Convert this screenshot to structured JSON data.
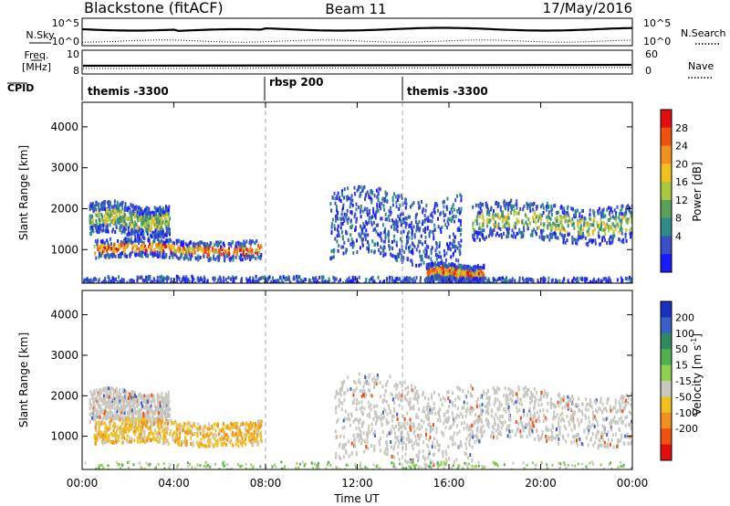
{
  "header": {
    "station": "Blackstone (fitACF)",
    "beam": "Beam 11",
    "date": "17/May/2016"
  },
  "top_panels": {
    "nsky_label": "N.Sky",
    "nsearch_label": "N.Search",
    "nsky_scale_top": "10^5",
    "nsky_scale_bottom": "10^0",
    "freq_label": "Freq.",
    "freq_unit": "[MHz]",
    "freq_ticks": [
      "10",
      "8"
    ],
    "nave_label": "Nave",
    "nave_ticks": [
      "60",
      "0"
    ],
    "cpid_label": "CPID",
    "cpid_segments": [
      {
        "label": "themis -3300",
        "start_hour": 0
      },
      {
        "label": "rbsp 200",
        "start_hour": 8
      },
      {
        "label": "themis -3300",
        "start_hour": 14
      }
    ]
  },
  "axes": {
    "xlabel": "Time UT",
    "x_tick_labels": [
      "00:00",
      "04:00",
      "08:00",
      "12:00",
      "16:00",
      "20:00",
      "00:00"
    ],
    "ylabel": "Slant Range [km]",
    "y_tick_labels": [
      "1000",
      "2000",
      "3000",
      "4000"
    ]
  },
  "power_colorbar": {
    "label": "Power [dB]",
    "tick_labels": [
      "4",
      "8",
      "12",
      "16",
      "20",
      "24",
      "28"
    ],
    "colors": [
      "#1a1aff",
      "#3a50c8",
      "#2f8a8a",
      "#5aa05a",
      "#a8c840",
      "#f0c020",
      "#f09020",
      "#f05010",
      "#e01010"
    ]
  },
  "velocity_colorbar": {
    "label": "Velocity [m s^-1]",
    "tick_labels": [
      "200",
      "100",
      "50",
      "15",
      "-15",
      "-50",
      "-100",
      "-200"
    ],
    "colors": [
      "#1a30c0",
      "#3a60c8",
      "#2f8a60",
      "#50b050",
      "#90d050",
      "#c8c8c0",
      "#f0c020",
      "#f09020",
      "#f05010",
      "#e01010"
    ]
  },
  "chart_data": {
    "type": "heatmap",
    "x_range_hours": [
      0,
      24
    ],
    "y_range_km": [
      180,
      4600
    ],
    "grid": false,
    "dashed_time_markers_hours": [
      8,
      14
    ],
    "power_features": [
      {
        "t0": 0.3,
        "t1": 3.8,
        "r0": 1350,
        "r1": 2200,
        "level": "high"
      },
      {
        "t0": 0.5,
        "t1": 7.8,
        "r0": 800,
        "r1": 1300,
        "level": "very high"
      },
      {
        "t0": 10.8,
        "t1": 16.5,
        "r0": 700,
        "r1": 2500,
        "level": "low"
      },
      {
        "t0": 15.0,
        "t1": 17.5,
        "r0": 250,
        "r1": 700,
        "level": "very high"
      },
      {
        "t0": 17.0,
        "t1": 24.0,
        "r0": 1200,
        "r1": 2200,
        "level": "high"
      },
      {
        "t0": 0.0,
        "t1": 24.0,
        "r0": 180,
        "r1": 380,
        "level": "low"
      }
    ],
    "velocity_features": [
      {
        "t0": 0.3,
        "t1": 3.8,
        "r0": 1350,
        "r1": 2200,
        "value": "near zero"
      },
      {
        "t0": 0.5,
        "t1": 7.8,
        "r0": 800,
        "r1": 1450,
        "value": "negative (-15 to -50)"
      },
      {
        "t0": 11.0,
        "t1": 17.0,
        "r0": 300,
        "r1": 2500,
        "value": "near zero"
      },
      {
        "t0": 17.0,
        "t1": 24.0,
        "r0": 800,
        "r1": 2200,
        "value": "near zero"
      }
    ]
  }
}
